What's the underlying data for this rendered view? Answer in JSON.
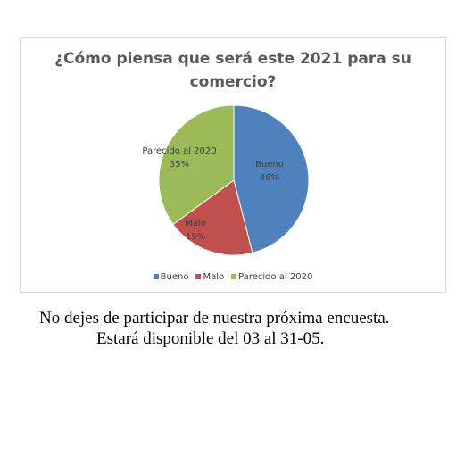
{
  "chart_data": {
    "type": "pie",
    "title": "¿Cómo piensa que será este 2021 para su comercio?",
    "title_lines": [
      "¿Cómo piensa que será este 2021 para su",
      "comercio?"
    ],
    "categories": [
      "Bueno",
      "Malo",
      "Parecido al 2020"
    ],
    "values": [
      46,
      19,
      35
    ],
    "value_labels": [
      "46%",
      "19%",
      "35%"
    ],
    "colors": [
      "#4f81bd",
      "#c0504d",
      "#9bbb59"
    ],
    "legend_position": "bottom"
  },
  "footer": {
    "line1": "No dejes de participar de nuestra próxima encuesta.",
    "line2": "Estará disponible del 03 al 31-05."
  }
}
